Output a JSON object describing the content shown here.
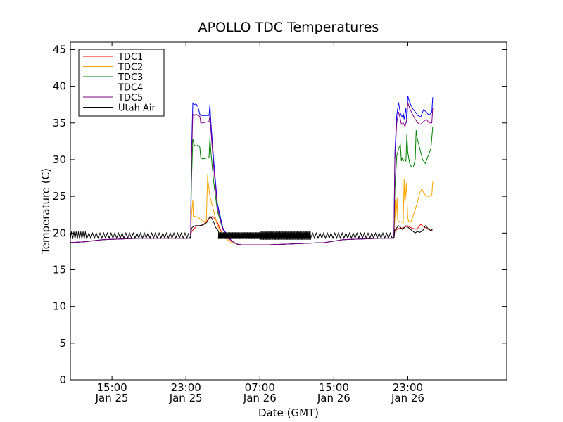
{
  "chart_data": {
    "type": "line",
    "title": "APOLLO TDC Temperatures",
    "xlabel": "Date (GMT)",
    "ylabel": "Temperature (C)",
    "xlim": [
      10.5,
      57.7
    ],
    "ylim": [
      0,
      46
    ],
    "x_unit": "hours since Jan 25 00:00 GMT",
    "yticks": [
      0,
      5,
      10,
      15,
      20,
      25,
      30,
      35,
      40,
      45
    ],
    "xticks": [
      {
        "x": 15,
        "line1": "15:00",
        "line2": "Jan 25"
      },
      {
        "x": 23,
        "line1": "23:00",
        "line2": "Jan 25"
      },
      {
        "x": 31,
        "line1": "07:00",
        "line2": "Jan 26"
      },
      {
        "x": 39,
        "line1": "15:00",
        "line2": "Jan 26"
      },
      {
        "x": 47,
        "line1": "23:00",
        "line2": "Jan 26"
      }
    ],
    "legend_position": "top-left",
    "series": [
      {
        "name": "TDC1",
        "color": "#ff0000",
        "x": [
          10.5,
          12,
          14,
          16,
          18,
          20,
          22,
          23.5,
          23.6,
          24.2,
          24.8,
          25.2,
          25.9,
          26.4,
          26.6,
          26.9,
          27.2,
          27.6,
          28,
          28.5,
          29,
          30,
          32,
          34,
          36,
          38,
          40,
          42,
          44,
          45.5,
          45.6,
          46.0,
          46.5,
          47.0,
          47.2,
          47.6,
          48.0,
          48.4,
          48.8,
          49.2,
          49.7
        ],
        "y": [
          18.7,
          18.8,
          19.1,
          19.2,
          19.3,
          19.3,
          19.3,
          19.3,
          20.2,
          21.0,
          21.0,
          21.6,
          22.3,
          21.5,
          20.8,
          20.0,
          19.4,
          19.0,
          18.7,
          18.5,
          18.4,
          18.4,
          18.4,
          18.5,
          18.6,
          18.7,
          19.1,
          19.2,
          19.3,
          19.3,
          20.3,
          20.6,
          20.7,
          21.0,
          20.8,
          20.6,
          20.5,
          21.2,
          20.8,
          20.5,
          20.3
        ]
      },
      {
        "name": "TDC2",
        "color": "#ffa500",
        "x": [
          10.5,
          12,
          14,
          16,
          18,
          20,
          22,
          23.5,
          23.6,
          23.75,
          23.8,
          24.2,
          24.8,
          25.1,
          25.2,
          25.35,
          25.4,
          25.6,
          26.0,
          26.4,
          27.0,
          27.6,
          28.0,
          28.5,
          29,
          30,
          32,
          34,
          36,
          38,
          40,
          42,
          44,
          45.5,
          45.6,
          45.65,
          45.7,
          45.85,
          45.9,
          46.0,
          46.3,
          46.4,
          46.5,
          46.6,
          46.65,
          46.7,
          46.85,
          47.0,
          47.1,
          47.3,
          47.5,
          47.7,
          48.0,
          48.3,
          48.5,
          48.8,
          49.1,
          49.4,
          49.6,
          49.7
        ],
        "y": [
          18.7,
          18.8,
          19.1,
          19.2,
          19.3,
          19.3,
          19.3,
          19.3,
          22.5,
          24.5,
          22.3,
          22.2,
          21.7,
          21.5,
          21.5,
          28.0,
          27.0,
          25.0,
          23.0,
          21.0,
          19.7,
          19.0,
          18.7,
          18.5,
          18.4,
          18.4,
          18.4,
          18.5,
          18.6,
          18.7,
          19.1,
          19.2,
          19.3,
          19.3,
          22.0,
          24.5,
          22.0,
          24.8,
          21.8,
          21.6,
          21.5,
          21.5,
          21.3,
          27.3,
          25.0,
          24.0,
          26.8,
          22.0,
          21.6,
          21.5,
          22.0,
          22.8,
          24.0,
          25.5,
          26.0,
          25.3,
          25.0,
          25.0,
          25.2,
          27.0
        ]
      },
      {
        "name": "TDC3",
        "color": "#008000",
        "x": [
          10.5,
          12,
          14,
          16,
          18,
          20,
          22,
          23.5,
          23.6,
          23.75,
          23.9,
          24.1,
          24.3,
          24.5,
          24.6,
          24.8,
          25.5,
          25.6,
          25.7,
          26.0,
          26.4,
          27.0,
          27.6,
          28.0,
          28.5,
          29,
          30,
          32,
          34,
          36,
          38,
          40,
          42,
          44,
          45.5,
          45.6,
          45.8,
          46.0,
          46.2,
          46.3,
          46.4,
          46.5,
          46.6,
          46.8,
          46.9,
          47.0,
          47.2,
          47.4,
          47.6,
          47.8,
          47.9,
          48.0,
          48.3,
          48.6,
          48.9,
          49.2,
          49.5,
          49.7
        ],
        "y": [
          18.7,
          18.8,
          19.1,
          19.2,
          19.3,
          19.3,
          19.3,
          19.3,
          27.0,
          32.8,
          32.0,
          31.8,
          32.0,
          31.7,
          30.3,
          30.1,
          30.3,
          33.0,
          31.0,
          27.0,
          23.0,
          20.5,
          19.3,
          18.9,
          18.5,
          18.4,
          18.4,
          18.4,
          18.5,
          18.6,
          18.7,
          19.1,
          19.2,
          19.3,
          19.3,
          26.0,
          30.5,
          31.5,
          32.0,
          29.8,
          30.3,
          29.8,
          30.0,
          29.8,
          33.5,
          31.0,
          29.5,
          29.0,
          29.0,
          30.0,
          34.0,
          33.0,
          31.5,
          30.0,
          29.5,
          30.5,
          31.5,
          34.5
        ]
      },
      {
        "name": "TDC4",
        "color": "#0000ff",
        "x": [
          10.5,
          12,
          14,
          16,
          18,
          20,
          22,
          23.5,
          23.6,
          23.75,
          23.9,
          24.1,
          24.3,
          24.5,
          24.6,
          24.8,
          25.5,
          25.6,
          25.7,
          26.0,
          26.4,
          27.0,
          27.6,
          28.0,
          28.5,
          29,
          30,
          32,
          34,
          36,
          38,
          40,
          42,
          44,
          45.5,
          45.6,
          45.8,
          46.0,
          46.2,
          46.3,
          46.4,
          46.5,
          46.6,
          46.8,
          46.9,
          47.0,
          47.2,
          47.5,
          47.8,
          48.1,
          48.4,
          48.7,
          49.0,
          49.3,
          49.6,
          49.7
        ],
        "y": [
          18.7,
          18.8,
          19.1,
          19.2,
          19.3,
          19.3,
          19.3,
          19.3,
          31.0,
          37.7,
          37.5,
          37.6,
          37.2,
          36.2,
          36.0,
          36.0,
          36.0,
          37.5,
          35.0,
          30.0,
          24.0,
          20.7,
          19.4,
          18.9,
          18.5,
          18.4,
          18.4,
          18.4,
          18.5,
          18.6,
          18.7,
          19.1,
          19.2,
          19.3,
          19.3,
          31.0,
          36.0,
          37.8,
          36.3,
          36.0,
          35.8,
          36.3,
          35.5,
          37.0,
          35.0,
          38.7,
          37.8,
          37.0,
          36.5,
          36.0,
          35.8,
          36.8,
          36.5,
          36.0,
          36.5,
          38.5
        ]
      },
      {
        "name": "TDC5",
        "color": "#800080",
        "x": [
          10.5,
          12,
          14,
          16,
          18,
          20,
          22,
          23.5,
          23.6,
          23.75,
          23.9,
          24.1,
          24.3,
          24.5,
          24.6,
          24.8,
          25.5,
          25.6,
          25.7,
          26.0,
          26.4,
          27.0,
          27.6,
          28.0,
          28.5,
          29,
          30,
          32,
          34,
          36,
          38,
          40,
          42,
          44,
          45.5,
          45.6,
          45.8,
          46.0,
          46.2,
          46.3,
          46.5,
          46.7,
          46.9,
          47.0,
          47.2,
          47.5,
          47.8,
          48.1,
          48.4,
          48.7,
          49.0,
          49.3,
          49.6,
          49.7
        ],
        "y": [
          18.7,
          18.8,
          19.1,
          19.2,
          19.3,
          19.3,
          19.3,
          19.3,
          30.0,
          36.2,
          36.0,
          36.2,
          36.0,
          35.9,
          35.0,
          35.0,
          35.2,
          36.0,
          34.0,
          29.0,
          23.5,
          20.5,
          19.3,
          18.9,
          18.5,
          18.4,
          18.4,
          18.4,
          18.5,
          18.6,
          18.7,
          19.1,
          19.2,
          19.3,
          19.3,
          30.0,
          35.0,
          36.5,
          35.5,
          34.8,
          35.0,
          34.5,
          35.5,
          37.8,
          37.0,
          36.2,
          35.5,
          35.0,
          34.8,
          35.2,
          35.5,
          35.0,
          35.0,
          37.0
        ]
      },
      {
        "name": "Utah Air",
        "color": "#000000",
        "osc_segments": [
          {
            "x_start": 10.5,
            "x_end": 12.3,
            "low": 19.2,
            "high": 20.2,
            "period": 0.25
          },
          {
            "x_start": 12.3,
            "x_end": 23.3,
            "low": 19.3,
            "high": 20.0,
            "period": 0.4
          },
          {
            "x_start": 26.5,
            "x_end": 31.0,
            "low": 19.2,
            "high": 20.1,
            "period": 0.1
          },
          {
            "x_start": 31.0,
            "x_end": 36.5,
            "low": 19.1,
            "high": 20.2,
            "period": 0.1
          },
          {
            "x_start": 36.5,
            "x_end": 45.3,
            "low": 19.3,
            "high": 20.0,
            "period": 0.4
          }
        ],
        "x": [
          23.3,
          23.5,
          23.6,
          23.7,
          24.0,
          24.5,
          25.0,
          25.3,
          25.5,
          25.6,
          25.8,
          26.0,
          26.2,
          26.5,
          26.6
        ],
        "y": [
          19.4,
          19.4,
          20.6,
          20.8,
          21.0,
          21.0,
          21.2,
          21.5,
          22.0,
          22.3,
          22.0,
          21.5,
          20.8,
          20.3,
          19.6
        ],
        "x2": [
          45.3,
          45.5,
          45.6,
          45.8,
          46.0,
          46.2,
          46.4,
          46.6,
          46.8,
          47.0,
          47.2,
          47.5,
          47.8,
          48.0,
          48.3,
          48.6,
          48.9,
          49.2,
          49.5,
          49.7
        ],
        "y2": [
          19.4,
          19.3,
          20.5,
          20.7,
          21.0,
          20.8,
          20.5,
          20.7,
          21.0,
          20.8,
          20.6,
          20.3,
          20.0,
          20.2,
          20.1,
          20.3,
          21.0,
          20.6,
          20.3,
          20.6
        ]
      }
    ]
  }
}
